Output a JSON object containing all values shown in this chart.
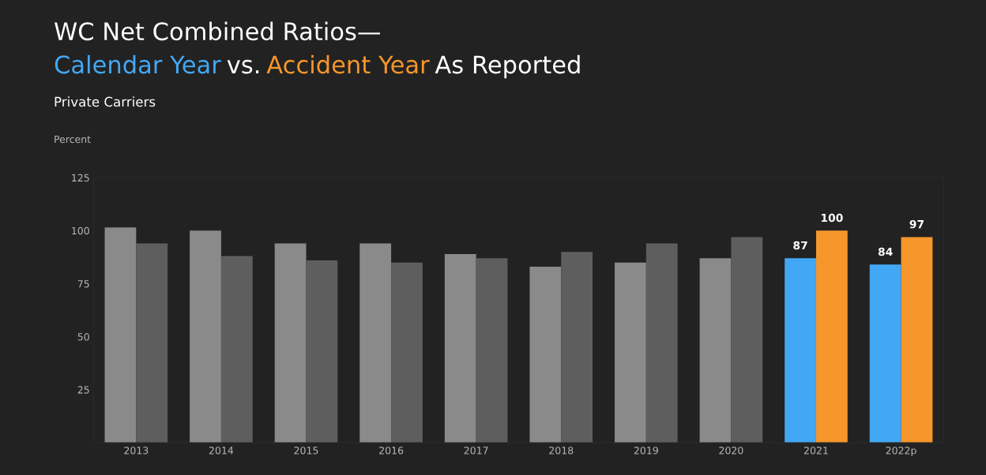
{
  "chart_data": {
    "type": "bar",
    "title": "WC Net Combined Ratios—",
    "subtitle": "Private Carriers",
    "ylabel": "Percent",
    "annotations": [
      "vs.",
      "As Reported"
    ],
    "categories": [
      "2013",
      "2014",
      "2015",
      "2016",
      "2017",
      "2018",
      "2019",
      "2020",
      "2021",
      "2022p"
    ],
    "series": [
      {
        "name": "Calendar Year",
        "color": "#42a8f5",
        "colors": [
          "#8a8a8a",
          "#8a8a8a",
          "#8a8a8a",
          "#8a8a8a",
          "#8a8a8a",
          "#8a8a8a",
          "#8a8a8a",
          "#8a8a8a",
          "#42a8f5",
          "#42a8f5"
        ],
        "values": [
          101.5,
          100,
          94,
          94,
          89,
          83,
          85,
          87,
          87,
          84
        ],
        "value_labels": [
          null,
          null,
          null,
          null,
          null,
          null,
          null,
          null,
          "87",
          "84"
        ]
      },
      {
        "name": "Accident Year",
        "color": "#f7962a",
        "colors": [
          "#5e5e5e",
          "#5e5e5e",
          "#5e5e5e",
          "#5e5e5e",
          "#5e5e5e",
          "#5e5e5e",
          "#5e5e5e",
          "#5e5e5e",
          "#f7962a",
          "#f7962a"
        ],
        "values": [
          94,
          88,
          86,
          85,
          87,
          90,
          94,
          97,
          100,
          97
        ],
        "value_labels": [
          null,
          null,
          null,
          null,
          null,
          null,
          null,
          null,
          "100",
          "97"
        ]
      }
    ],
    "ylim": [
      0,
      125
    ],
    "yticks": [
      25,
      50,
      75,
      100,
      125
    ],
    "grid": false,
    "legend": false
  }
}
